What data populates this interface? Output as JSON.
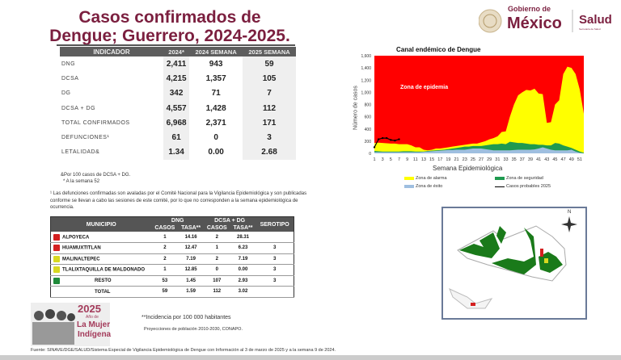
{
  "title": "Casos confirmados de Dengue; Guerrero, 2024-2025.",
  "logo": {
    "gobierno": "Gobierno de",
    "mexico": "México",
    "salud": "Salud",
    "salud_sub": "Secretaría de Salud"
  },
  "table1": {
    "headers": [
      "INDICADOR",
      "2024*",
      "2024 SEMANA",
      "2025 SEMANA"
    ],
    "rows": [
      [
        "DNG",
        "2,411",
        "943",
        "59"
      ],
      [
        "DCSA",
        "4,215",
        "1,357",
        "105"
      ],
      [
        "DG",
        "342",
        "71",
        "7"
      ],
      [
        "DCSA + DG",
        "4,557",
        "1,428",
        "112"
      ],
      [
        "TOTAL CONFIRMADOS",
        "6,968",
        "2,371",
        "171"
      ],
      [
        "DEFUNCIONES¹",
        "61",
        "0",
        "3"
      ],
      [
        "LETALIDAD&",
        "1.34",
        "0.00",
        "2.68"
      ]
    ]
  },
  "notes": [
    "&Por 100 casos de DCSA + DG.",
    "* A la semana 52"
  ],
  "paragraph": "¹ Las defunciones confirmadas son avaladas por el Comité Nacional para la Vigilancia Epidemiológica y son publicadas conforme se llevan a cabo las sesiones de este comité, por lo que no corresponden a la semana epidemiológica de ocurrencia.",
  "table2": {
    "headers": {
      "municipio": "MUNICIPIO",
      "dng": "DNG",
      "dcsa": "DCSA + DG",
      "serotipo": "SEROTIPO",
      "casos": "CASOS",
      "tasa": "TASA**"
    },
    "rows": [
      {
        "color": "#d42020",
        "name": "ALPOYECA",
        "dng_casos": "1",
        "dng_tasa": "14.16",
        "dcsa_casos": "2",
        "dcsa_tasa": "28.31",
        "serotipo": ""
      },
      {
        "color": "#d42020",
        "name": "HUAMUXTITLAN",
        "dng_casos": "2",
        "dng_tasa": "12.47",
        "dcsa_casos": "1",
        "dcsa_tasa": "6.23",
        "serotipo": "3"
      },
      {
        "color": "#d8d820",
        "name": "MALINALTEPEC",
        "dng_casos": "2",
        "dng_tasa": "7.19",
        "dcsa_casos": "2",
        "dcsa_tasa": "7.19",
        "serotipo": "3"
      },
      {
        "color": "#d8d820",
        "name": "TLALIXTAQUILLA DE MALDONADO",
        "dng_casos": "1",
        "dng_tasa": "12.85",
        "dcsa_casos": "0",
        "dcsa_tasa": "0.00",
        "serotipo": "3"
      },
      {
        "color": "#1f8a3a",
        "name": "RESTO",
        "dng_casos": "53",
        "dng_tasa": "1.45",
        "dcsa_casos": "107",
        "dcsa_tasa": "2.93",
        "serotipo": "3"
      },
      {
        "color": "",
        "name": "TOTAL",
        "dng_casos": "59",
        "dng_tasa": "1.59",
        "dcsa_casos": "112",
        "dcsa_tasa": "3.02",
        "serotipo": ""
      }
    ]
  },
  "logo2025": {
    "year": "2025",
    "line1": "Año de",
    "line2": "La Mujer",
    "line3": "Indígena"
  },
  "incidencia": "**Incidencia por 100 000 habitantes",
  "proyecciones": "Proyecciones de población 2010-2030,  CONAPO.",
  "fuente": "Fuente: SINAVE/DGE/SALUD/Sistema Especial de Vigilancia Epidemiológica de Dengue con Información al 3 de marzo de 2025 y a la semana 9 de 2024.",
  "map": {
    "north": "N"
  },
  "chart_data": {
    "type": "area",
    "title": "Canal endémico de Dengue",
    "xlabel": "Semana Epidemiológica",
    "ylabel": "Número de casos",
    "ylim": [
      0,
      1600
    ],
    "yticks": [
      "0",
      "200",
      "400",
      "600",
      "800",
      "1,000",
      "1,200",
      "1,400",
      "1,600"
    ],
    "xticks": [
      "1",
      "3",
      "5",
      "7",
      "9",
      "11",
      "13",
      "15",
      "17",
      "19",
      "21",
      "23",
      "25",
      "27",
      "29",
      "31",
      "33",
      "35",
      "37",
      "39",
      "41",
      "43",
      "45",
      "47",
      "49",
      "51"
    ],
    "annotation": "Zona de epidemia",
    "weeks": [
      1,
      2,
      3,
      4,
      5,
      6,
      7,
      8,
      9,
      10,
      11,
      12,
      13,
      14,
      15,
      16,
      17,
      18,
      19,
      20,
      21,
      22,
      23,
      24,
      25,
      26,
      27,
      28,
      29,
      30,
      31,
      32,
      33,
      34,
      35,
      36,
      37,
      38,
      39,
      40,
      41,
      42,
      43,
      44,
      45,
      46,
      47,
      48,
      49,
      50,
      51,
      52
    ],
    "series": [
      {
        "name": "Zona de alarma",
        "color": "#ffff00",
        "values": [
          170,
          175,
          170,
          165,
          160,
          160,
          150,
          150,
          150,
          130,
          100,
          100,
          60,
          50,
          60,
          80,
          80,
          90,
          100,
          110,
          120,
          130,
          140,
          150,
          160,
          160,
          180,
          200,
          230,
          250,
          280,
          350,
          360,
          600,
          800,
          950,
          1000,
          1040,
          1030,
          1060,
          980,
          970,
          500,
          510,
          800,
          870,
          1300,
          1420,
          1400,
          1300,
          1050,
          650
        ]
      },
      {
        "name": "Zona de seguridad",
        "color": "#1f9a50",
        "values": [
          40,
          35,
          30,
          30,
          30,
          30,
          30,
          35,
          35,
          35,
          30,
          30,
          30,
          40,
          45,
          50,
          55,
          60,
          70,
          80,
          90,
          100,
          110,
          110,
          120,
          120,
          120,
          130,
          140,
          150,
          150,
          160,
          150,
          190,
          180,
          170,
          170,
          160,
          150,
          150,
          140,
          140,
          130,
          130,
          170,
          160,
          130,
          110,
          90,
          60,
          30,
          10
        ]
      },
      {
        "name": "Zona de éxito",
        "color": "#9fbfe0",
        "values": [
          20,
          20,
          20,
          20,
          20,
          20,
          20,
          20,
          20,
          20,
          20,
          20,
          25,
          30,
          35,
          40,
          45,
          50,
          55,
          55,
          60,
          60,
          60,
          70,
          80,
          80,
          80,
          70,
          60,
          50,
          50,
          50,
          50,
          50,
          55,
          60,
          60,
          60,
          60,
          65,
          80,
          100,
          80,
          60,
          50,
          50,
          50,
          50,
          60,
          30,
          10,
          0
        ]
      },
      {
        "name": "Casos probables 2025",
        "color": "#000000",
        "values": [
          100,
          230,
          250,
          250,
          220,
          210,
          230
        ]
      }
    ],
    "epidemic_color": "#ff0000",
    "legend_position": "bottom"
  }
}
